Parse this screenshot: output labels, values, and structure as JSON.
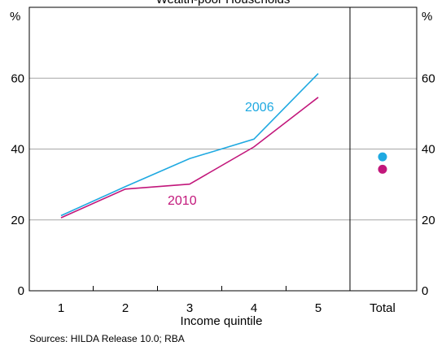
{
  "chart_data": {
    "type": "line",
    "title": "Wealth-poor Households",
    "xlabel": "Income quintile",
    "unit_left": "%",
    "unit_right": "%",
    "categories": [
      "1",
      "2",
      "3",
      "4",
      "5"
    ],
    "total_category": "Total",
    "ylim": [
      0,
      80
    ],
    "yticks": [
      0,
      20,
      40,
      60
    ],
    "grid": true,
    "series": [
      {
        "name": "2006",
        "values": [
          21.2,
          29.4,
          37.3,
          42.8,
          61.3
        ],
        "total": 37.8,
        "color": "#1fa9e1"
      },
      {
        "name": "2010",
        "values": [
          20.6,
          28.7,
          30.1,
          40.6,
          54.6
        ],
        "total": 34.3,
        "color": "#c2177b"
      }
    ],
    "source": "Sources: HILDA Release 10.0; RBA"
  }
}
